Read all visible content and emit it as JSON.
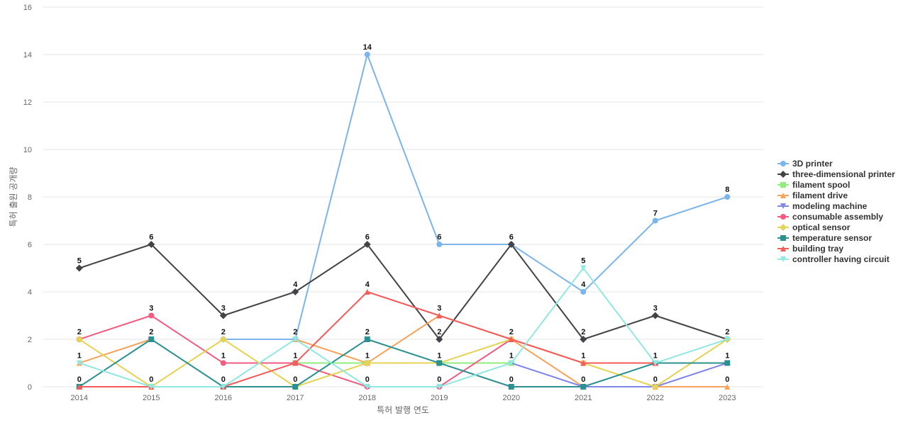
{
  "chart_data": {
    "type": "line",
    "title": "",
    "xlabel": "특허 발행 연도",
    "ylabel": "특허 출원 공개량",
    "ylim": [
      0,
      16
    ],
    "yticks": [
      0,
      2,
      4,
      6,
      8,
      10,
      12,
      14,
      16
    ],
    "grid": true,
    "legend_position": "right",
    "categories": [
      "2014",
      "2015",
      "2016",
      "2017",
      "2018",
      "2019",
      "2020",
      "2021",
      "2022",
      "2023"
    ],
    "series": [
      {
        "name": "3D printer",
        "color": "#7cb5ec",
        "marker": "circle",
        "values": [
          null,
          null,
          2,
          2,
          14,
          6,
          6,
          4,
          7,
          8
        ]
      },
      {
        "name": "three-dimensional printer",
        "color": "#434348",
        "marker": "diamond",
        "values": [
          5,
          6,
          3,
          4,
          6,
          2,
          6,
          2,
          3,
          2
        ]
      },
      {
        "name": "filament spool",
        "color": "#90ed7d",
        "marker": "square",
        "values": [
          null,
          null,
          null,
          1,
          1,
          1,
          1,
          null,
          null,
          null
        ]
      },
      {
        "name": "filament drive",
        "color": "#f7a35c",
        "marker": "triangle",
        "values": [
          1,
          2,
          null,
          2,
          1,
          3,
          2,
          0,
          0,
          0
        ]
      },
      {
        "name": "modeling machine",
        "color": "#8085e9",
        "marker": "triangle-down",
        "values": [
          null,
          null,
          null,
          null,
          null,
          null,
          1,
          0,
          0,
          1
        ]
      },
      {
        "name": "consumable assembly",
        "color": "#f15c80",
        "marker": "circle",
        "values": [
          2,
          3,
          1,
          1,
          0,
          0,
          2,
          1,
          1,
          null
        ]
      },
      {
        "name": "optical sensor",
        "color": "#e4d354",
        "marker": "diamond",
        "values": [
          2,
          0,
          2,
          0,
          1,
          1,
          2,
          1,
          0,
          2
        ]
      },
      {
        "name": "temperature sensor",
        "color": "#2b908f",
        "marker": "square",
        "values": [
          0,
          2,
          0,
          0,
          2,
          1,
          0,
          0,
          1,
          1
        ]
      },
      {
        "name": "building tray",
        "color": "#f45b5b",
        "marker": "triangle",
        "values": [
          0,
          0,
          0,
          1,
          4,
          3,
          2,
          1,
          1,
          null
        ]
      },
      {
        "name": "controller having circuit",
        "color": "#91e8e1",
        "marker": "triangle-down",
        "values": [
          1,
          0,
          0,
          2,
          0,
          0,
          1,
          5,
          1,
          2
        ]
      }
    ],
    "data_labels": [
      {
        "category": "2014",
        "value": 5
      },
      {
        "category": "2014",
        "value": 2
      },
      {
        "category": "2014",
        "value": 1
      },
      {
        "category": "2014",
        "value": 0
      },
      {
        "category": "2015",
        "value": 6
      },
      {
        "category": "2015",
        "value": 3
      },
      {
        "category": "2015",
        "value": 2
      },
      {
        "category": "2015",
        "value": 0
      },
      {
        "category": "2016",
        "value": 3
      },
      {
        "category": "2016",
        "value": 2
      },
      {
        "category": "2016",
        "value": 1
      },
      {
        "category": "2016",
        "value": 0
      },
      {
        "category": "2017",
        "value": 4
      },
      {
        "category": "2017",
        "value": 2
      },
      {
        "category": "2017",
        "value": 1
      },
      {
        "category": "2017",
        "value": 0
      },
      {
        "category": "2018",
        "value": 14
      },
      {
        "category": "2018",
        "value": 6
      },
      {
        "category": "2018",
        "value": 4
      },
      {
        "category": "2018",
        "value": 2
      },
      {
        "category": "2018",
        "value": 1
      },
      {
        "category": "2018",
        "value": 0
      },
      {
        "category": "2019",
        "value": 6
      },
      {
        "category": "2019",
        "value": 3
      },
      {
        "category": "2019",
        "value": 2
      },
      {
        "category": "2019",
        "value": 1
      },
      {
        "category": "2019",
        "value": 0
      },
      {
        "category": "2020",
        "value": 6
      },
      {
        "category": "2020",
        "value": 2
      },
      {
        "category": "2020",
        "value": 1
      },
      {
        "category": "2020",
        "value": 0
      },
      {
        "category": "2021",
        "value": 5
      },
      {
        "category": "2021",
        "value": 4
      },
      {
        "category": "2021",
        "value": 2
      },
      {
        "category": "2021",
        "value": 1
      },
      {
        "category": "2021",
        "value": 0
      },
      {
        "category": "2022",
        "value": 7
      },
      {
        "category": "2022",
        "value": 3
      },
      {
        "category": "2022",
        "value": 1
      },
      {
        "category": "2022",
        "value": 0
      },
      {
        "category": "2023",
        "value": 8
      },
      {
        "category": "2023",
        "value": 2
      },
      {
        "category": "2023",
        "value": 1
      },
      {
        "category": "2023",
        "value": 0
      }
    ]
  }
}
